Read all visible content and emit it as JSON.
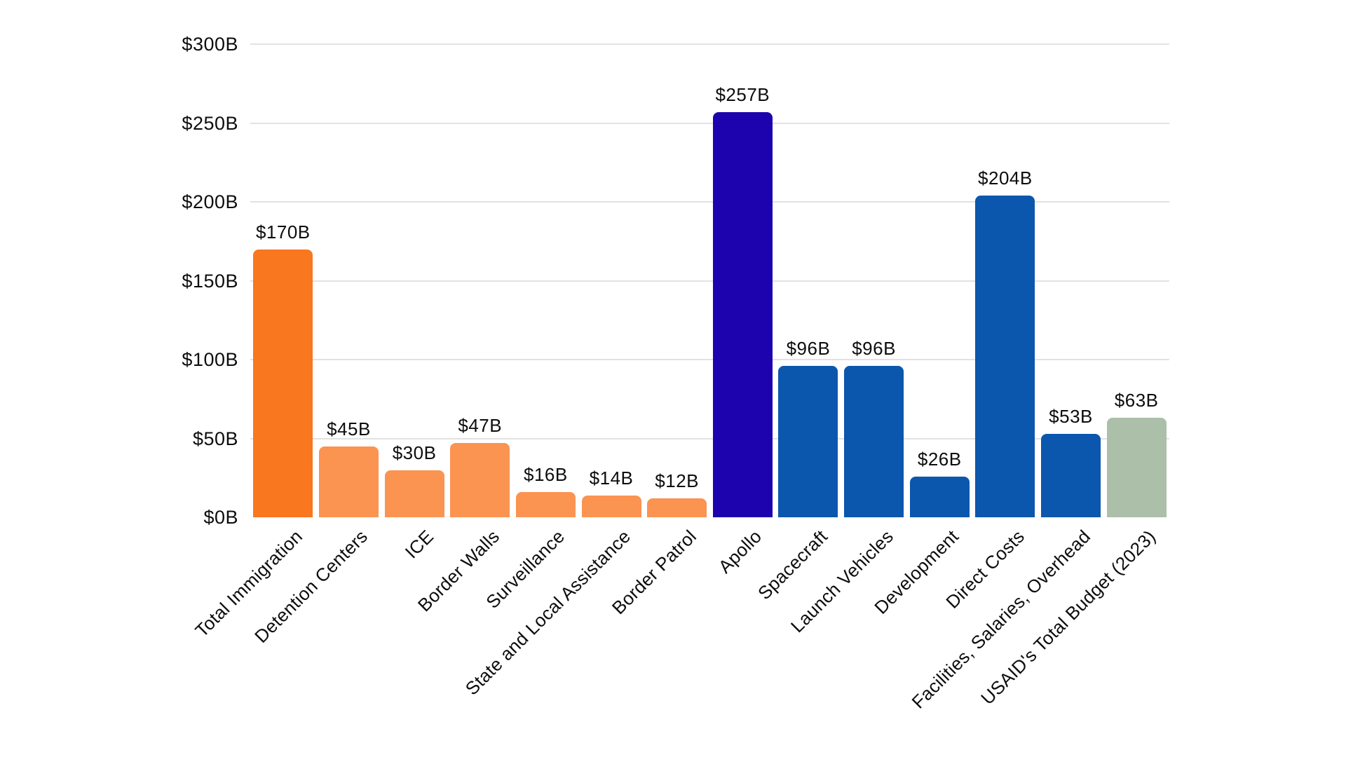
{
  "chart_data": {
    "type": "bar",
    "title": "",
    "xlabel": "",
    "ylabel": "",
    "categories": [
      "Total Immigration",
      "Detention Centers",
      "ICE",
      "Border Walls",
      "Surveillance",
      "State and Local Assistance",
      "Border Patrol",
      "Apollo",
      "Spacecraft",
      "Launch Vehicles",
      "Development",
      "Direct Costs",
      "Facilities, Salaries, Overhead",
      "USAID's Total Budget (2023)"
    ],
    "values": [
      170,
      45,
      30,
      47,
      16,
      14,
      12,
      257,
      96,
      96,
      26,
      204,
      53,
      63
    ],
    "value_labels": [
      "$170B",
      "$45B",
      "$30B",
      "$47B",
      "$16B",
      "$14B",
      "$12B",
      "$257B",
      "$96B",
      "$96B",
      "$26B",
      "$204B",
      "$53B",
      "$63B"
    ],
    "unit": "billions USD",
    "yticks": [
      "$0B",
      "$50B",
      "$100B",
      "$150B",
      "$200B",
      "$250B",
      "$300B"
    ],
    "ytick_values": [
      0,
      50,
      100,
      150,
      200,
      250,
      300
    ],
    "ylim": [
      0,
      300
    ],
    "grid": "horizontal",
    "legend": "none",
    "bar_colors": [
      "#F9771E",
      "#FB9351",
      "#FB9351",
      "#FB9351",
      "#FB9351",
      "#FB9351",
      "#FB9351",
      "#1C03AE",
      "#0B57AD",
      "#0B57AD",
      "#0B57AD",
      "#0B57AD",
      "#0B57AD",
      "#ABBFA9"
    ],
    "palette": {
      "immigration_total": "#F9771E",
      "immigration_breakdown": "#FB9351",
      "apollo_total": "#1C03AE",
      "apollo_breakdown": "#0B57AD",
      "usaid_total": "#ABBFA9",
      "gridline": "#E2E2E2",
      "text": "#0D0D0D",
      "background": "#FFFFFF"
    }
  }
}
